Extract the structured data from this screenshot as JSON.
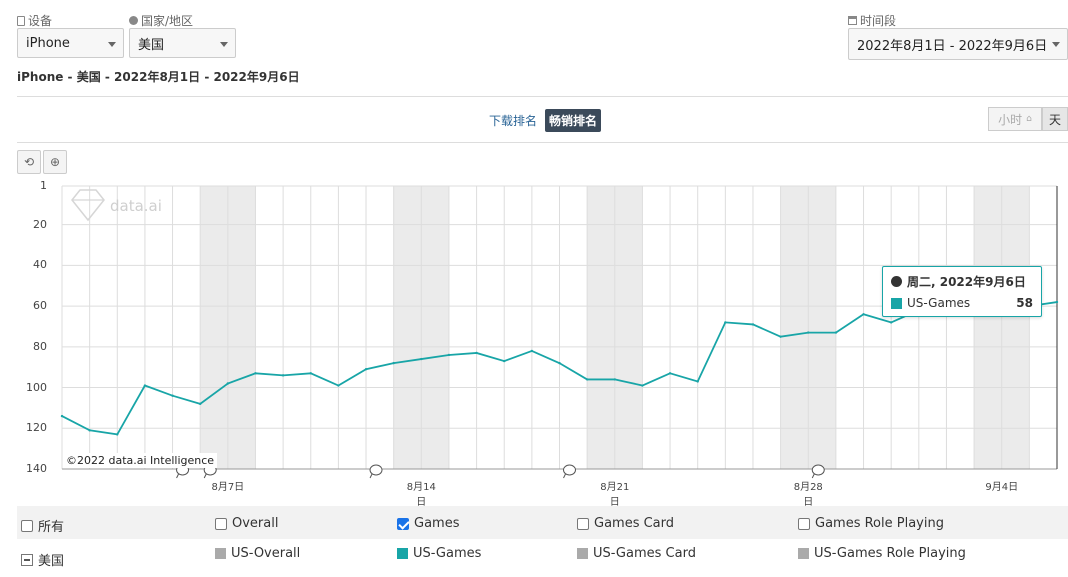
{
  "filters": {
    "device_label": "设备",
    "device_value": "iPhone",
    "country_label": "国家/地区",
    "country_value": "美国",
    "period_label": "时间段",
    "period_value": "2022年8月1日 - 2022年9月6日"
  },
  "subtitle": "iPhone - 美国 - 2022年8月1日 - 2022年9月6日",
  "rank_tabs": {
    "downloads": "下载排名",
    "grossing": "畅销排名"
  },
  "granularity": {
    "hour": "小时",
    "day": "天"
  },
  "watermark": "data.ai",
  "copyright": "©2022 data.ai Intelligence",
  "tooltip": {
    "date": "周二, 2022年9月6日",
    "series": "US-Games",
    "value": "58"
  },
  "legend": {
    "categories": [
      {
        "label": "所有",
        "checked": false
      },
      {
        "label": "Overall",
        "checked": false
      },
      {
        "label": "Games",
        "checked": true
      },
      {
        "label": "Games Card",
        "checked": false
      },
      {
        "label": "Games Role Playing",
        "checked": false
      }
    ],
    "country": "美国",
    "series": [
      {
        "label": "US-Overall",
        "color": "#aaaaaa"
      },
      {
        "label": "US-Games",
        "color": "#18a5a7"
      },
      {
        "label": "US-Games Card",
        "color": "#aaaaaa"
      },
      {
        "label": "US-Games Role Playing",
        "color": "#aaaaaa"
      }
    ]
  },
  "colors": {
    "line": "#18a5a7",
    "weekend_band": "#ebebeb",
    "grid": "#dddddd"
  },
  "chart_data": {
    "type": "line",
    "title": "",
    "xlabel": "",
    "ylabel": "",
    "y_reversed": true,
    "ylim": [
      1,
      140
    ],
    "y_ticks": [
      1,
      20,
      40,
      60,
      80,
      100,
      120,
      140
    ],
    "x_tick_labels": [
      "8月7日",
      "8月14日",
      "8月21日",
      "8月28日",
      "9月4日"
    ],
    "x": [
      "8月1日",
      "8月2日",
      "8月3日",
      "8月4日",
      "8月5日",
      "8月6日",
      "8月7日",
      "8月8日",
      "8月9日",
      "8月10日",
      "8月11日",
      "8月12日",
      "8月13日",
      "8月14日",
      "8月15日",
      "8月16日",
      "8月17日",
      "8月18日",
      "8月19日",
      "8月20日",
      "8月21日",
      "8月22日",
      "8月23日",
      "8月24日",
      "8月25日",
      "8月26日",
      "8月27日",
      "8月28日",
      "8月29日",
      "8月30日",
      "8月31日",
      "9月1日",
      "9月2日",
      "9月3日",
      "9月4日",
      "9月5日",
      "9月6日"
    ],
    "series": [
      {
        "name": "US-Games",
        "values": [
          114,
          121,
          123,
          99,
          104,
          108,
          98,
          93,
          94,
          93,
          99,
          91,
          88,
          86,
          84,
          83,
          87,
          82,
          88,
          96,
          96,
          99,
          93,
          97,
          68,
          69,
          75,
          73,
          73,
          64,
          68,
          62,
          63,
          63,
          60,
          60,
          58
        ]
      }
    ]
  }
}
